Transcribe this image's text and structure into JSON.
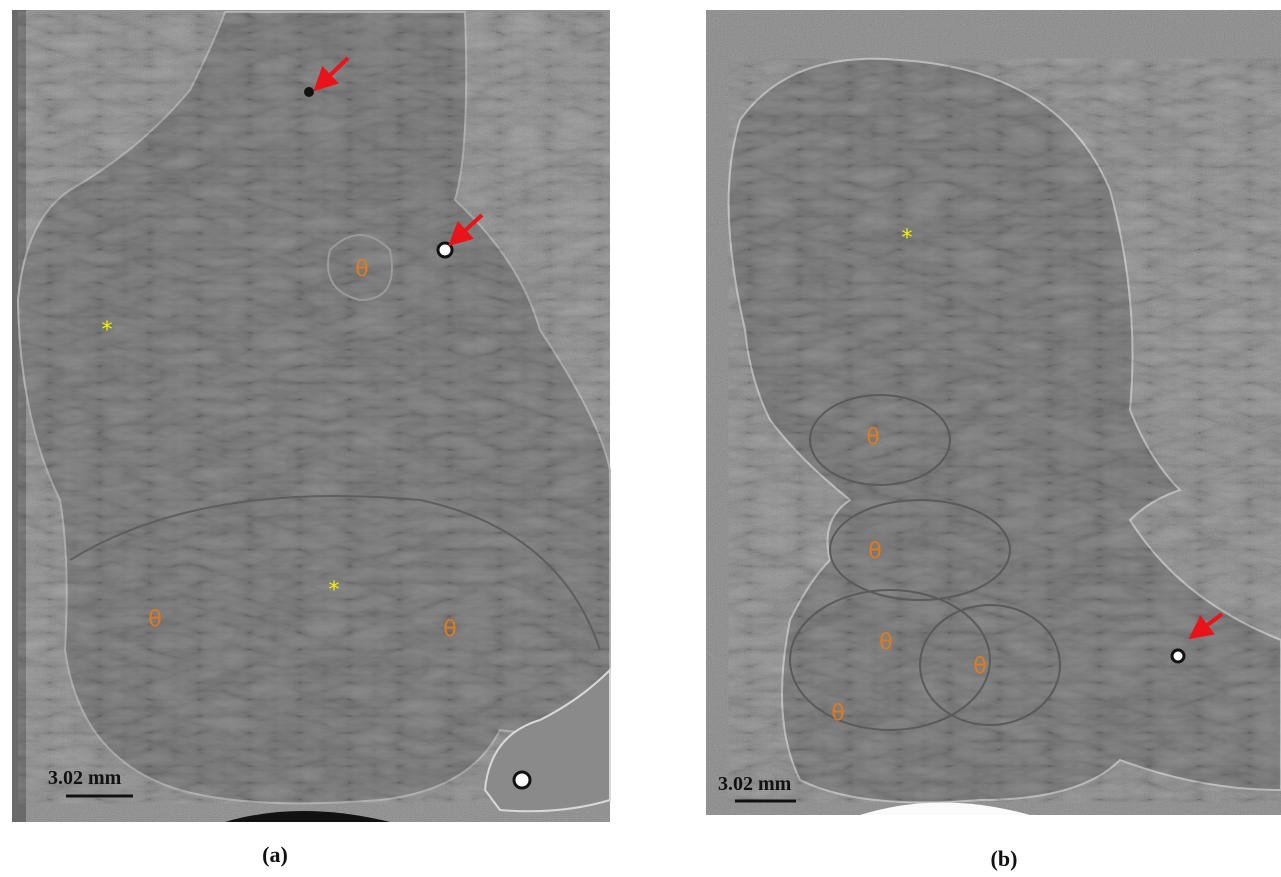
{
  "panels": [
    {
      "caption": "(a)",
      "scale_bar": "3.02 mm",
      "labels": [
        "*",
        "*",
        "θ",
        "θ",
        "θ"
      ]
    },
    {
      "caption": "(b)",
      "scale_bar": "3.02 mm",
      "labels": [
        "*",
        "θ",
        "θ",
        "θ",
        "θ",
        "θ"
      ]
    }
  ]
}
